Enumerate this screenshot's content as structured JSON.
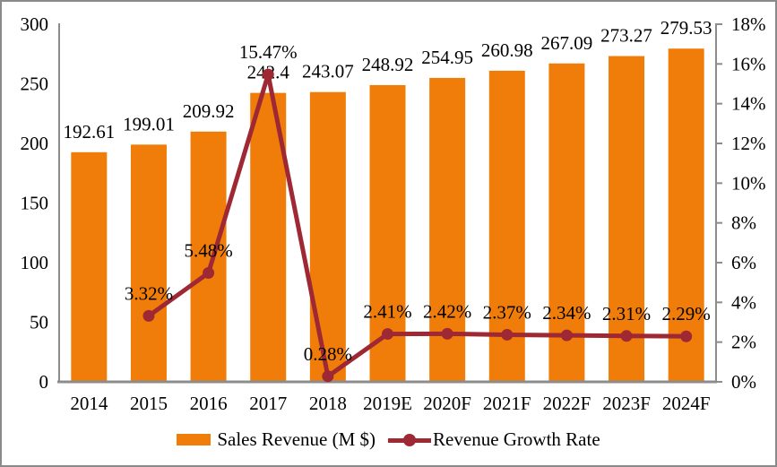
{
  "chart_data": {
    "type": "bar",
    "combo": "bar+line",
    "title": "",
    "categories": [
      "2014",
      "2015",
      "2016",
      "2017",
      "2018",
      "2019E",
      "2020F",
      "2021F",
      "2022F",
      "2023F",
      "2024F"
    ],
    "series": [
      {
        "name": "Sales Revenue (M $)",
        "type": "bar",
        "axis": "left",
        "color": "#F07D0A",
        "values": [
          192.61,
          199.01,
          209.92,
          242.4,
          243.07,
          248.92,
          254.95,
          260.98,
          267.09,
          273.27,
          279.53
        ],
        "labels": [
          "192.61",
          "199.01",
          "209.92",
          "242.4",
          "243.07",
          "248.92",
          "254.95",
          "260.98",
          "267.09",
          "273.27",
          "279.53"
        ]
      },
      {
        "name": "Revenue Growth Rate",
        "type": "line",
        "axis": "right",
        "color": "#9E2833",
        "values": [
          null,
          3.32,
          5.48,
          15.47,
          0.28,
          2.41,
          2.42,
          2.37,
          2.34,
          2.31,
          2.29
        ],
        "labels": [
          null,
          "3.32%",
          "5.48%",
          "15.47%",
          "0.28%",
          "2.41%",
          "2.42%",
          "2.37%",
          "2.34%",
          "2.31%",
          "2.29%"
        ]
      }
    ],
    "axes": {
      "left": {
        "min": 0,
        "max": 300,
        "step": 50,
        "tick_labels": [
          "300",
          "250",
          "200",
          "150",
          "100",
          "50",
          "0"
        ]
      },
      "right": {
        "min": 0,
        "max": 18,
        "step": 2,
        "tick_labels": [
          "18%",
          "16%",
          "14%",
          "12%",
          "10%",
          "8%",
          "6%",
          "4%",
          "2%",
          "0%"
        ]
      }
    },
    "grid": false,
    "legend_position": "bottom",
    "axis_color": "#8C8C8C"
  },
  "legend": {
    "items": [
      {
        "label": "Sales Revenue (M $)",
        "swatch": "bar",
        "color": "#F07D0A"
      },
      {
        "label": "Revenue Growth Rate",
        "swatch": "line-marker",
        "color": "#9E2833"
      }
    ]
  }
}
